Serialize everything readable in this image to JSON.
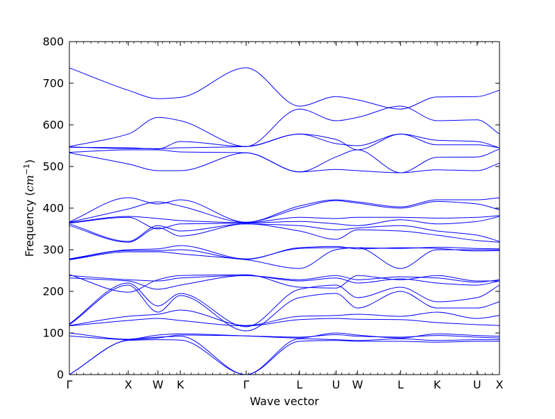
{
  "chart_data": {
    "type": "line",
    "xlabel": "Wave vector",
    "ylabel_text": "Frequency (",
    "ylabel_unit": "cm",
    "ylabel_exp": "−1",
    "ylabel_close": ")",
    "ylim": [
      0,
      800
    ],
    "y_ticks": [
      0,
      100,
      200,
      300,
      400,
      500,
      600,
      700,
      800
    ],
    "x_points": [
      {
        "label": "Γ",
        "x": 0
      },
      {
        "label": "X",
        "x": 0.137
      },
      {
        "label": "W",
        "x": 0.206
      },
      {
        "label": "K",
        "x": 0.258
      },
      {
        "label": "Γ",
        "x": 0.411
      },
      {
        "label": "L",
        "x": 0.535
      },
      {
        "label": "U",
        "x": 0.62
      },
      {
        "label": "W",
        "x": 0.67
      },
      {
        "label": "L",
        "x": 0.77
      },
      {
        "label": "K",
        "x": 0.855
      },
      {
        "label": "U",
        "x": 0.948
      },
      {
        "label": "X",
        "x": 1
      }
    ],
    "series_color": "#0000ff",
    "grid": false,
    "series": [
      {
        "x": [
          0,
          0.137,
          0.206,
          0.258,
          0.411,
          0.535,
          0.62,
          0.67,
          0.77,
          0.855,
          0.948,
          1
        ],
        "y": [
          0,
          82,
          84,
          83,
          0,
          80,
          82,
          80,
          80,
          78,
          80,
          80
        ]
      },
      {
        "x": [
          0,
          0.137,
          0.206,
          0.258,
          0.411,
          0.535,
          0.62,
          0.67,
          0.77,
          0.855,
          0.948,
          1
        ],
        "y": [
          0,
          84,
          90,
          92,
          0,
          86,
          84,
          82,
          86,
          82,
          84,
          84
        ]
      },
      {
        "x": [
          0,
          0.137,
          0.206,
          0.258,
          0.411,
          0.535,
          0.62,
          0.67,
          0.77,
          0.855,
          0.948,
          1
        ],
        "y": [
          93,
          84,
          88,
          95,
          93,
          90,
          96,
          92,
          90,
          94,
          90,
          88
        ]
      },
      {
        "x": [
          0,
          0.137,
          0.206,
          0.258,
          0.411,
          0.535,
          0.62,
          0.67,
          0.77,
          0.855,
          0.948,
          1
        ],
        "y": [
          100,
          85,
          95,
          98,
          93,
          88,
          100,
          95,
          88,
          98,
          94,
          92
        ]
      },
      {
        "x": [
          0,
          0.137,
          0.206,
          0.258,
          0.411,
          0.535,
          0.62,
          0.67,
          0.77,
          0.855,
          0.948,
          1
        ],
        "y": [
          117,
          130,
          135,
          130,
          117,
          132,
          135,
          133,
          132,
          125,
          120,
          118
        ]
      },
      {
        "x": [
          0,
          0.137,
          0.206,
          0.258,
          0.411,
          0.535,
          0.62,
          0.67,
          0.77,
          0.855,
          0.948,
          1
        ],
        "y": [
          118,
          140,
          145,
          155,
          118,
          140,
          142,
          145,
          140,
          150,
          135,
          142
        ]
      },
      {
        "x": [
          0,
          0.137,
          0.206,
          0.258,
          0.411,
          0.535,
          0.62,
          0.67,
          0.77,
          0.855,
          0.948,
          1
        ],
        "y": [
          120,
          215,
          150,
          190,
          105,
          185,
          195,
          160,
          200,
          160,
          160,
          175
        ]
      },
      {
        "x": [
          0,
          0.137,
          0.206,
          0.258,
          0.411,
          0.535,
          0.62,
          0.67,
          0.77,
          0.855,
          0.948,
          1
        ],
        "y": [
          122,
          220,
          165,
          195,
          115,
          205,
          215,
          185,
          210,
          175,
          185,
          215
        ]
      },
      {
        "x": [
          0,
          0.137,
          0.206,
          0.258,
          0.411,
          0.535,
          0.62,
          0.67,
          0.77,
          0.855,
          0.948,
          1
        ],
        "y": [
          232,
          225,
          205,
          215,
          238,
          225,
          232,
          220,
          230,
          220,
          215,
          225
        ]
      },
      {
        "x": [
          0,
          0.137,
          0.206,
          0.258,
          0.411,
          0.535,
          0.62,
          0.67,
          0.77,
          0.855,
          0.948,
          1
        ],
        "y": [
          238,
          228,
          225,
          232,
          238,
          228,
          238,
          228,
          235,
          232,
          222,
          228
        ]
      },
      {
        "x": [
          0,
          0.137,
          0.206,
          0.258,
          0.411,
          0.535,
          0.62,
          0.67,
          0.77,
          0.855,
          0.948,
          1
        ],
        "y": [
          240,
          198,
          228,
          238,
          240,
          210,
          208,
          238,
          228,
          238,
          225,
          225
        ]
      },
      {
        "x": [
          0,
          0.137,
          0.206,
          0.258,
          0.411,
          0.535,
          0.62,
          0.67,
          0.77,
          0.855,
          0.948,
          1
        ],
        "y": [
          276,
          295,
          295,
          290,
          276,
          255,
          300,
          305,
          255,
          300,
          300,
          300
        ]
      },
      {
        "x": [
          0,
          0.137,
          0.206,
          0.258,
          0.411,
          0.535,
          0.62,
          0.67,
          0.77,
          0.855,
          0.948,
          1
        ],
        "y": [
          277,
          298,
          298,
          300,
          277,
          305,
          308,
          302,
          305,
          303,
          297,
          298
        ]
      },
      {
        "x": [
          0,
          0.137,
          0.206,
          0.258,
          0.411,
          0.535,
          0.62,
          0.67,
          0.77,
          0.855,
          0.948,
          1
        ],
        "y": [
          278,
          300,
          302,
          310,
          278,
          303,
          305,
          305,
          303,
          306,
          303,
          302
        ]
      },
      {
        "x": [
          0,
          0.137,
          0.206,
          0.258,
          0.411,
          0.535,
          0.62,
          0.67,
          0.77,
          0.855,
          0.948,
          1
        ],
        "y": [
          358,
          318,
          353,
          333,
          362,
          345,
          325,
          348,
          345,
          335,
          322,
          318
        ]
      },
      {
        "x": [
          0,
          0.137,
          0.206,
          0.258,
          0.411,
          0.535,
          0.62,
          0.67,
          0.77,
          0.855,
          0.948,
          1
        ],
        "y": [
          362,
          320,
          358,
          345,
          362,
          358,
          348,
          352,
          358,
          345,
          335,
          320
        ]
      },
      {
        "x": [
          0,
          0.137,
          0.206,
          0.258,
          0.411,
          0.535,
          0.62,
          0.67,
          0.77,
          0.855,
          0.948,
          1
        ],
        "y": [
          364,
          378,
          350,
          362,
          364,
          368,
          362,
          358,
          372,
          362,
          368,
          380
        ]
      },
      {
        "x": [
          0,
          0.137,
          0.206,
          0.258,
          0.411,
          0.535,
          0.62,
          0.67,
          0.77,
          0.855,
          0.948,
          1
        ],
        "y": [
          365,
          380,
          375,
          370,
          365,
          378,
          375,
          378,
          378,
          376,
          378,
          382
        ]
      },
      {
        "x": [
          0,
          0.137,
          0.206,
          0.258,
          0.411,
          0.535,
          0.62,
          0.67,
          0.77,
          0.855,
          0.948,
          1
        ],
        "y": [
          366,
          398,
          415,
          405,
          366,
          400,
          418,
          412,
          400,
          416,
          410,
          396
        ]
      },
      {
        "x": [
          0,
          0.137,
          0.206,
          0.258,
          0.411,
          0.535,
          0.62,
          0.67,
          0.77,
          0.855,
          0.948,
          1
        ],
        "y": [
          367,
          425,
          410,
          420,
          366,
          405,
          420,
          415,
          403,
          420,
          420,
          425
        ]
      },
      {
        "x": [
          0,
          0.137,
          0.206,
          0.258,
          0.411,
          0.535,
          0.62,
          0.67,
          0.77,
          0.855,
          0.948,
          1
        ],
        "y": [
          533,
          506,
          490,
          490,
          533,
          487,
          493,
          490,
          485,
          492,
          490,
          508
        ]
      },
      {
        "x": [
          0,
          0.137,
          0.206,
          0.258,
          0.411,
          0.535,
          0.62,
          0.67,
          0.77,
          0.855,
          0.948,
          1
        ],
        "y": [
          534,
          540,
          540,
          535,
          533,
          487,
          523,
          540,
          485,
          522,
          523,
          542
        ]
      },
      {
        "x": [
          0,
          0.137,
          0.206,
          0.258,
          0.411,
          0.535,
          0.62,
          0.67,
          0.77,
          0.855,
          0.948,
          1
        ],
        "y": [
          546,
          545,
          542,
          560,
          548,
          578,
          565,
          540,
          578,
          563,
          560,
          545
        ]
      },
      {
        "x": [
          0,
          0.137,
          0.206,
          0.258,
          0.411,
          0.535,
          0.62,
          0.67,
          0.77,
          0.855,
          0.948,
          1
        ],
        "y": [
          547,
          543,
          543,
          545,
          548,
          578,
          555,
          550,
          578,
          552,
          552,
          545
        ]
      },
      {
        "x": [
          0,
          0.137,
          0.206,
          0.258,
          0.411,
          0.535,
          0.62,
          0.67,
          0.77,
          0.855,
          0.948,
          1
        ],
        "y": [
          548,
          578,
          618,
          610,
          548,
          638,
          610,
          618,
          645,
          610,
          612,
          578
        ]
      },
      {
        "x": [
          0,
          0.137,
          0.206,
          0.258,
          0.411,
          0.535,
          0.62,
          0.67,
          0.77,
          0.855,
          0.948,
          1
        ],
        "y": [
          737,
          683,
          663,
          666,
          737,
          645,
          668,
          660,
          638,
          667,
          668,
          683
        ]
      }
    ]
  }
}
